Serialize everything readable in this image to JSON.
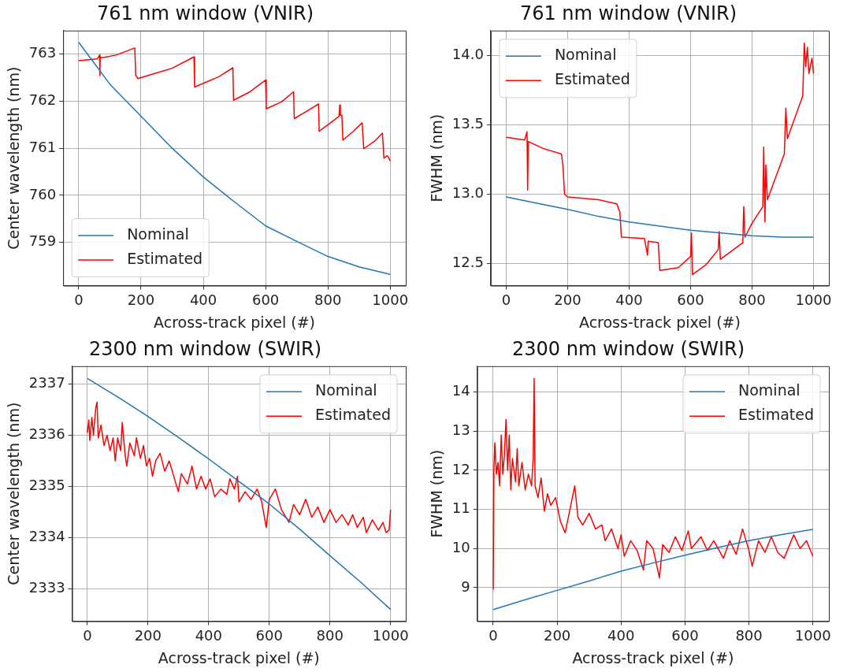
{
  "chart_data": [
    {
      "type": "line",
      "title": "761 nm window (VNIR)",
      "xlabel": "Across-track pixel (#)",
      "ylabel": "Center wavelength (nm)",
      "xlim": [
        -50,
        1050
      ],
      "xticks": [
        0,
        200,
        400,
        600,
        800,
        1000
      ],
      "ylim": [
        758.08,
        763.5
      ],
      "yticks": [
        759,
        760,
        761,
        762,
        763
      ],
      "grid": true,
      "legend": "bottom left",
      "series": [
        {
          "name": "Nominal",
          "color": "#1f77b4",
          "x": [
            0,
            100,
            200,
            300,
            400,
            500,
            600,
            700,
            800,
            900,
            1000
          ],
          "values": [
            763.25,
            762.36,
            761.68,
            761.0,
            760.39,
            759.86,
            759.35,
            759.02,
            758.7,
            758.48,
            758.32
          ]
        },
        {
          "name": "Estimated",
          "color": "#ff0000",
          "x": [
            0,
            60,
            67,
            68,
            69,
            72,
            120,
            180,
            183,
            190,
            250,
            300,
            370,
            372,
            400,
            450,
            495,
            497,
            550,
            600,
            602,
            650,
            690,
            692,
            730,
            770,
            772,
            810,
            836,
            838,
            840,
            845,
            848,
            880,
            910,
            915,
            950,
            975,
            980,
            990,
            995,
            1000
          ],
          "values": [
            762.86,
            762.9,
            762.98,
            762.54,
            762.95,
            762.92,
            762.98,
            763.13,
            762.55,
            762.48,
            762.6,
            762.7,
            762.94,
            762.3,
            762.38,
            762.52,
            762.71,
            762.02,
            762.2,
            762.45,
            761.84,
            761.98,
            762.2,
            761.63,
            761.78,
            761.94,
            761.36,
            761.55,
            761.68,
            761.92,
            761.7,
            761.7,
            761.17,
            761.35,
            761.54,
            760.99,
            761.15,
            761.32,
            760.79,
            760.84,
            760.8,
            760.73
          ]
        }
      ]
    },
    {
      "type": "line",
      "title": "761 nm window (VNIR)",
      "xlabel": "Across-track pixel (#)",
      "ylabel": "FWHM (nm)",
      "xlim": [
        -50,
        1050
      ],
      "xticks": [
        0,
        200,
        400,
        600,
        800,
        1000
      ],
      "ylim": [
        12.34,
        14.18
      ],
      "yticks": [
        12.5,
        {
          "value": 13,
          "label": "13.0"
        },
        13.5,
        {
          "value": 14,
          "label": "14.0"
        }
      ],
      "grid": true,
      "legend": "top left",
      "series": [
        {
          "name": "Nominal",
          "color": "#1f77b4",
          "x": [
            0,
            100,
            200,
            300,
            400,
            500,
            600,
            700,
            800,
            900,
            1000
          ],
          "values": [
            12.98,
            12.935,
            12.89,
            12.84,
            12.8,
            12.77,
            12.74,
            12.72,
            12.7,
            12.69,
            12.69
          ]
        },
        {
          "name": "Estimated",
          "color": "#ff0000",
          "x": [
            0,
            60,
            68,
            70,
            72,
            120,
            180,
            185,
            190,
            200,
            300,
            360,
            370,
            375,
            450,
            460,
            462,
            495,
            500,
            560,
            600,
            603,
            606,
            650,
            690,
            693,
            697,
            770,
            773,
            777,
            800,
            835,
            838,
            842,
            845,
            850,
            905,
            910,
            915,
            965,
            970,
            975,
            980,
            985,
            995,
            1000
          ],
          "values": [
            13.41,
            13.39,
            13.45,
            13.03,
            13.38,
            13.33,
            13.29,
            13.2,
            13.0,
            12.98,
            12.96,
            12.93,
            12.87,
            12.69,
            12.68,
            12.56,
            12.66,
            12.65,
            12.45,
            12.47,
            12.55,
            12.72,
            12.42,
            12.49,
            12.6,
            12.73,
            12.53,
            12.65,
            12.91,
            12.69,
            12.79,
            12.91,
            13.34,
            12.8,
            13.21,
            12.96,
            13.29,
            13.62,
            13.4,
            13.71,
            14.09,
            13.92,
            14.06,
            13.87,
            13.98,
            13.87
          ]
        }
      ]
    },
    {
      "type": "line",
      "title": "2300 nm window (SWIR)",
      "xlabel": "Across-track pixel (#)",
      "ylabel": "Center wavelength (nm)",
      "xlim": [
        -50,
        1050
      ],
      "xticks": [
        0,
        200,
        400,
        600,
        800,
        1000
      ],
      "ylim": [
        2332.37,
        2337.35
      ],
      "yticks": [
        2333,
        2334,
        2335,
        2336,
        2337
      ],
      "grid": true,
      "legend": "top right",
      "series": [
        {
          "name": "Nominal",
          "color": "#1f77b4",
          "x": [
            0,
            100,
            200,
            300,
            400,
            500,
            600,
            700,
            800,
            900,
            1000
          ],
          "values": [
            2337.11,
            2336.75,
            2336.37,
            2335.96,
            2335.54,
            2335.1,
            2334.66,
            2334.17,
            2333.65,
            2333.14,
            2332.6
          ]
        },
        {
          "name": "Estimated",
          "color": "#ff0000",
          "x": [
            0,
            5,
            8,
            15,
            20,
            28,
            32,
            36,
            45,
            55,
            65,
            75,
            85,
            92,
            100,
            110,
            115,
            125,
            130,
            140,
            155,
            162,
            175,
            185,
            195,
            205,
            215,
            225,
            240,
            255,
            270,
            285,
            300,
            310,
            330,
            345,
            360,
            375,
            390,
            405,
            420,
            440,
            460,
            470,
            485,
            495,
            500,
            520,
            540,
            560,
            575,
            590,
            600,
            620,
            640,
            665,
            680,
            700,
            720,
            740,
            760,
            780,
            800,
            820,
            840,
            860,
            875,
            890,
            910,
            920,
            940,
            960,
            975,
            985,
            995,
            1000
          ],
          "values": [
            2336.05,
            2336.3,
            2335.9,
            2336.35,
            2336.0,
            2336.55,
            2336.65,
            2335.95,
            2336.2,
            2335.8,
            2336.0,
            2335.7,
            2335.95,
            2335.5,
            2335.95,
            2335.7,
            2336.25,
            2335.6,
            2335.4,
            2335.85,
            2335.6,
            2335.95,
            2335.55,
            2335.8,
            2335.4,
            2335.55,
            2335.2,
            2335.5,
            2335.65,
            2335.3,
            2335.5,
            2335.2,
            2334.9,
            2335.25,
            2335.05,
            2335.4,
            2334.95,
            2335.2,
            2334.95,
            2335.15,
            2334.8,
            2334.95,
            2334.85,
            2335.15,
            2334.95,
            2335.2,
            2334.7,
            2334.9,
            2334.75,
            2334.95,
            2334.7,
            2334.2,
            2334.75,
            2334.95,
            2334.55,
            2334.3,
            2334.65,
            2334.45,
            2334.75,
            2334.4,
            2334.6,
            2334.3,
            2334.55,
            2334.3,
            2334.45,
            2334.25,
            2334.45,
            2334.2,
            2334.4,
            2334.1,
            2334.35,
            2334.15,
            2334.3,
            2334.1,
            2334.15,
            2334.55
          ]
        }
      ]
    },
    {
      "type": "line",
      "title": "2300 nm window (SWIR)",
      "xlabel": "Across-track pixel (#)",
      "ylabel": "FWHM (nm)",
      "xlim": [
        -50,
        1050
      ],
      "xticks": [
        0,
        200,
        400,
        600,
        800,
        1000
      ],
      "ylim": [
        8.14,
        14.66
      ],
      "yticks": [
        9,
        10,
        11,
        12,
        13,
        14
      ],
      "grid": true,
      "legend": "top right",
      "series": [
        {
          "name": "Nominal",
          "color": "#1f77b4",
          "x": [
            0,
            100,
            200,
            300,
            400,
            500,
            600,
            700,
            800,
            900,
            1000
          ],
          "values": [
            8.44,
            8.69,
            8.93,
            9.17,
            9.42,
            9.63,
            9.83,
            10.02,
            10.2,
            10.35,
            10.49
          ]
        },
        {
          "name": "Estimated",
          "color": "#ff0000",
          "x": [
            0,
            2,
            5,
            10,
            15,
            20,
            25,
            30,
            35,
            40,
            45,
            50,
            55,
            60,
            70,
            75,
            80,
            90,
            100,
            110,
            120,
            125,
            128,
            131,
            140,
            150,
            160,
            170,
            180,
            195,
            210,
            225,
            240,
            255,
            265,
            280,
            300,
            320,
            340,
            350,
            370,
            390,
            400,
            410,
            430,
            450,
            470,
            480,
            500,
            520,
            530,
            550,
            570,
            590,
            610,
            620,
            650,
            670,
            690,
            720,
            740,
            760,
            780,
            800,
            810,
            830,
            850,
            870,
            890,
            910,
            940,
            960,
            980,
            1000
          ],
          "values": [
            8.95,
            12.0,
            12.7,
            11.9,
            12.2,
            11.6,
            12.9,
            11.9,
            12.4,
            13.3,
            12.0,
            12.9,
            11.5,
            12.3,
            11.7,
            12.55,
            11.6,
            12.2,
            11.5,
            11.9,
            11.6,
            12.3,
            14.35,
            11.6,
            11.3,
            11.8,
            10.95,
            11.4,
            11.1,
            11.3,
            10.7,
            10.4,
            11.0,
            11.6,
            10.8,
            10.6,
            10.9,
            10.5,
            10.6,
            10.2,
            10.5,
            10.0,
            10.35,
            9.8,
            10.2,
            9.95,
            9.45,
            10.2,
            10.0,
            9.25,
            10.1,
            9.9,
            10.3,
            9.95,
            10.45,
            10.0,
            10.3,
            9.95,
            10.2,
            9.75,
            10.2,
            9.85,
            10.5,
            9.95,
            9.55,
            10.2,
            9.9,
            10.3,
            9.9,
            9.75,
            10.35,
            10.0,
            10.2,
            9.8
          ]
        }
      ]
    }
  ]
}
